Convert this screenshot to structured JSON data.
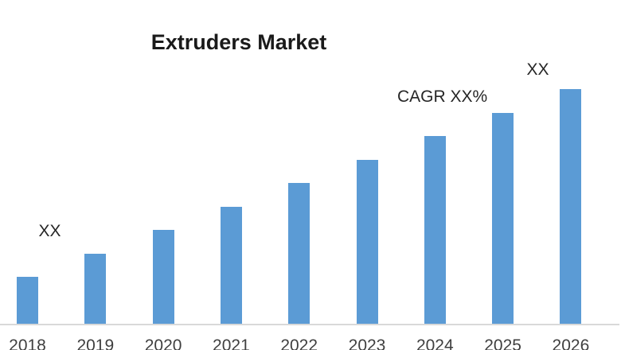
{
  "title": "Extruders Market",
  "annotations": {
    "left_xx": "XX",
    "cagr": "CAGR XX%",
    "right_xx": "XX"
  },
  "colors": {
    "bar": "#5B9BD5",
    "axis_line": "#D9D9D9",
    "title_text": "#1A1A1A",
    "label_text": "#3F3F3F",
    "annotation_text": "#262626",
    "background": "#FFFFFF"
  },
  "chart_data": {
    "type": "bar",
    "title": "Extruders Market",
    "categories": [
      "2018",
      "2019",
      "2020",
      "2021",
      "2022",
      "2023",
      "2024",
      "2025",
      "2026"
    ],
    "values": [
      2,
      3,
      4,
      5,
      6,
      7,
      8,
      9,
      10
    ],
    "value_note": "relative units estimated from bar heights; actual values masked as XX on the chart",
    "xlabel": "",
    "ylabel": "",
    "ylim": [
      0,
      10.5
    ],
    "grid": false,
    "legend": false,
    "y_axis_shown": false,
    "bar_color": "#5B9BD5",
    "annotations": [
      {
        "text": "XX",
        "position": "upper-right of 2018 bar"
      },
      {
        "text": "CAGR XX%",
        "position": "above 2024 bar"
      },
      {
        "text": "XX",
        "position": "above 2026 bar"
      }
    ]
  }
}
